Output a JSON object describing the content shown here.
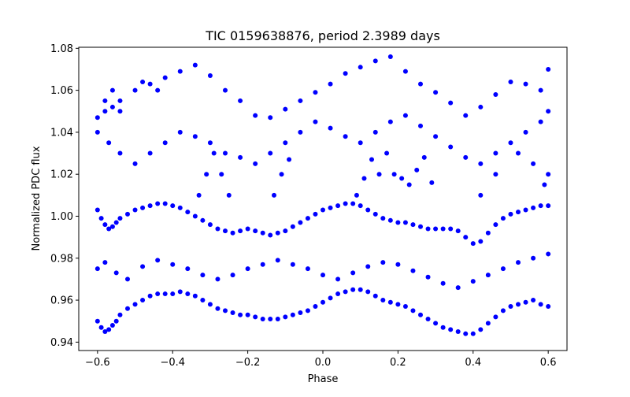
{
  "chart_data": {
    "type": "scatter",
    "title": "TIC 0159638876, period 2.3989 days",
    "xlabel": "Phase",
    "ylabel": "Normalized PDC flux",
    "xlim": [
      -0.65,
      0.65
    ],
    "ylim": [
      0.936,
      1.0805
    ],
    "xticks": [
      -0.6,
      -0.4,
      -0.2,
      0.0,
      0.2,
      0.4,
      0.6
    ],
    "xtick_labels": [
      "−0.6",
      "−0.4",
      "−0.2",
      "0.0",
      "0.2",
      "0.4",
      "0.6"
    ],
    "yticks": [
      0.94,
      0.96,
      0.98,
      1.0,
      1.02,
      1.04,
      1.06,
      1.08
    ],
    "ytick_labels": [
      "0.94",
      "0.96",
      "0.98",
      "1.00",
      "1.02",
      "1.04",
      "1.06",
      "1.08"
    ],
    "grid": false,
    "marker_color": "#0000ff",
    "series": [
      {
        "name": "",
        "x": [
          -0.6,
          -0.59,
          -0.58,
          -0.57,
          -0.56,
          -0.55,
          -0.54,
          -0.52,
          -0.5,
          -0.48,
          -0.46,
          -0.44,
          -0.42,
          -0.4,
          -0.38,
          -0.36,
          -0.34,
          -0.32,
          -0.3,
          -0.28,
          -0.26,
          -0.24,
          -0.22,
          -0.2,
          -0.18,
          -0.16,
          -0.14,
          -0.12,
          -0.1,
          -0.08,
          -0.06,
          -0.04,
          -0.02,
          0.0,
          0.02,
          0.04,
          0.06,
          0.08,
          0.1,
          0.12,
          0.14,
          0.16,
          0.18,
          0.2,
          0.22,
          0.24,
          0.26,
          0.28,
          0.3,
          0.32,
          0.34,
          0.36,
          0.38,
          0.4,
          0.42,
          0.44,
          0.46,
          0.48,
          0.5,
          0.52,
          0.54,
          0.56,
          0.58,
          0.6,
          -0.6,
          -0.58,
          -0.56,
          -0.54,
          -0.5,
          -0.46,
          -0.42,
          -0.38,
          -0.34,
          -0.3,
          -0.26,
          -0.22,
          -0.18,
          -0.14,
          -0.1,
          -0.06,
          -0.02,
          0.02,
          0.06,
          0.1,
          0.14,
          0.18,
          0.22,
          0.26,
          0.3,
          0.34,
          0.38,
          0.42,
          0.46,
          0.5,
          0.54,
          0.58,
          0.6,
          -0.6,
          -0.59,
          -0.58,
          -0.57,
          -0.56,
          -0.55,
          -0.54,
          -0.52,
          -0.5,
          -0.48,
          -0.46,
          -0.44,
          -0.42,
          -0.4,
          -0.38,
          -0.36,
          -0.34,
          -0.32,
          -0.3,
          -0.28,
          -0.26,
          -0.24,
          -0.22,
          -0.2,
          -0.18,
          -0.16,
          -0.14,
          -0.12,
          -0.1,
          -0.08,
          -0.06,
          -0.04,
          -0.02,
          0.0,
          0.02,
          0.04,
          0.06,
          0.08,
          0.1,
          0.12,
          0.14,
          0.16,
          0.18,
          0.2,
          0.22,
          0.24,
          0.26,
          0.28,
          0.3,
          0.32,
          0.34,
          0.36,
          0.38,
          0.4,
          0.42,
          0.44,
          0.46,
          0.48,
          0.5,
          0.52,
          0.54,
          0.56,
          0.58,
          0.6,
          -0.6,
          -0.57,
          -0.54,
          -0.5,
          -0.46,
          -0.42,
          -0.38,
          -0.34,
          -0.3,
          -0.26,
          -0.22,
          -0.18,
          -0.14,
          -0.1,
          -0.06,
          -0.02,
          0.02,
          0.06,
          0.1,
          0.14,
          0.18,
          0.22,
          0.26,
          0.3,
          0.34,
          0.38,
          0.42,
          0.46,
          0.5,
          0.54,
          0.58,
          0.6,
          -0.6,
          -0.58,
          -0.55,
          -0.52,
          -0.48,
          -0.44,
          -0.4,
          -0.36,
          -0.32,
          -0.28,
          -0.24,
          -0.2,
          -0.16,
          -0.12,
          -0.08,
          -0.04,
          0.0,
          0.04,
          0.08,
          0.12,
          0.16,
          0.2,
          0.24,
          0.28,
          0.32,
          0.36,
          0.4,
          0.44,
          0.48,
          0.52,
          0.56,
          0.6,
          -0.33,
          -0.31,
          -0.29,
          -0.27,
          -0.25,
          -0.13,
          -0.11,
          -0.09,
          0.09,
          0.11,
          0.13,
          0.15,
          0.17,
          0.19,
          0.21,
          0.23,
          0.25,
          0.27,
          0.29,
          0.59,
          0.6,
          0.56,
          0.52,
          0.46,
          0.42,
          -0.58,
          -0.56,
          -0.54,
          -0.48,
          -0.44
        ],
        "y": [
          1.003,
          0.999,
          0.996,
          0.994,
          0.995,
          0.997,
          0.999,
          1.001,
          1.003,
          1.004,
          1.005,
          1.006,
          1.006,
          1.005,
          1.004,
          1.002,
          1.0,
          0.998,
          0.996,
          0.994,
          0.993,
          0.992,
          0.993,
          0.994,
          0.993,
          0.992,
          0.991,
          0.992,
          0.993,
          0.995,
          0.997,
          0.999,
          1.001,
          1.003,
          1.004,
          1.005,
          1.006,
          1.006,
          1.005,
          1.003,
          1.001,
          0.999,
          0.998,
          0.997,
          0.997,
          0.996,
          0.995,
          0.994,
          0.994,
          0.994,
          0.994,
          0.993,
          0.99,
          0.987,
          0.988,
          0.992,
          0.996,
          0.999,
          1.001,
          1.002,
          1.003,
          1.004,
          1.005,
          1.005,
          1.047,
          1.05,
          1.052,
          1.055,
          1.06,
          1.063,
          1.066,
          1.069,
          1.072,
          1.067,
          1.06,
          1.055,
          1.048,
          1.047,
          1.051,
          1.055,
          1.059,
          1.063,
          1.068,
          1.071,
          1.074,
          1.076,
          1.069,
          1.063,
          1.059,
          1.054,
          1.048,
          1.052,
          1.058,
          1.064,
          1.063,
          1.06,
          1.07,
          0.95,
          0.947,
          0.945,
          0.946,
          0.948,
          0.95,
          0.953,
          0.956,
          0.958,
          0.96,
          0.962,
          0.963,
          0.963,
          0.963,
          0.964,
          0.963,
          0.962,
          0.96,
          0.958,
          0.956,
          0.955,
          0.954,
          0.953,
          0.953,
          0.952,
          0.951,
          0.951,
          0.951,
          0.952,
          0.953,
          0.954,
          0.955,
          0.957,
          0.959,
          0.961,
          0.963,
          0.964,
          0.965,
          0.965,
          0.964,
          0.962,
          0.96,
          0.959,
          0.958,
          0.957,
          0.955,
          0.953,
          0.951,
          0.949,
          0.947,
          0.946,
          0.945,
          0.944,
          0.944,
          0.946,
          0.949,
          0.952,
          0.955,
          0.957,
          0.958,
          0.959,
          0.96,
          0.958,
          0.957,
          1.04,
          1.035,
          1.03,
          1.025,
          1.03,
          1.035,
          1.04,
          1.038,
          1.035,
          1.03,
          1.028,
          1.025,
          1.03,
          1.035,
          1.04,
          1.045,
          1.042,
          1.038,
          1.035,
          1.04,
          1.045,
          1.048,
          1.043,
          1.038,
          1.033,
          1.028,
          1.025,
          1.03,
          1.035,
          1.04,
          1.045,
          1.05,
          0.975,
          0.978,
          0.973,
          0.97,
          0.976,
          0.979,
          0.977,
          0.975,
          0.972,
          0.97,
          0.972,
          0.975,
          0.977,
          0.979,
          0.977,
          0.975,
          0.972,
          0.97,
          0.973,
          0.976,
          0.978,
          0.977,
          0.974,
          0.971,
          0.968,
          0.966,
          0.969,
          0.972,
          0.975,
          0.978,
          0.98,
          0.982,
          1.01,
          1.02,
          1.03,
          1.02,
          1.01,
          1.01,
          1.02,
          1.027,
          1.01,
          1.018,
          1.027,
          1.02,
          1.03,
          1.02,
          1.018,
          1.015,
          1.022,
          1.028,
          1.016,
          1.015,
          1.02,
          1.025,
          1.03,
          1.02,
          1.01,
          1.055,
          1.06,
          1.05,
          1.064,
          1.06
        ]
      }
    ]
  }
}
